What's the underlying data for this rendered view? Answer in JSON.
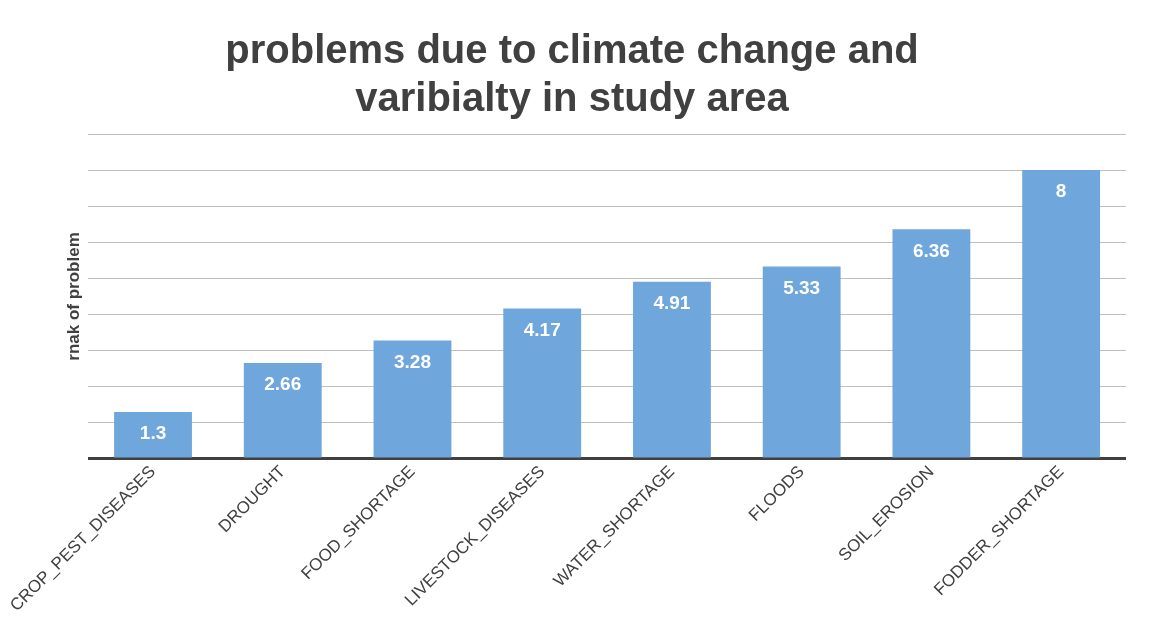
{
  "chart_data": {
    "type": "bar",
    "title": [
      "problems due to climate change and",
      "varibialty in study area"
    ],
    "ylabel": "rnak of problem",
    "categories": [
      "CROP_PEST_DISEASES",
      "DROUGHT",
      "FOOD_SHORTAGE",
      "LIVESTOCK_DISEASES",
      "WATER_SHORTAGE",
      "FLOODS",
      "SOIL_EROSION",
      "FODDER_SHORTAGE"
    ],
    "values": [
      1.3,
      2.66,
      3.28,
      4.17,
      4.91,
      5.33,
      6.36,
      8
    ],
    "color": "#6fa6db",
    "ylim": [
      0,
      9
    ],
    "yticks": [
      {
        "value": 0,
        "label": null
      },
      {
        "value": 1,
        "label": null
      },
      {
        "value": 2,
        "label": null
      },
      {
        "value": 3,
        "label": null
      },
      {
        "value": 4,
        "label": null
      },
      {
        "value": 5,
        "label": null
      },
      {
        "value": 6,
        "label": null
      },
      {
        "value": 7,
        "label": null
      },
      {
        "value": 8,
        "label": null
      },
      {
        "value": 9,
        "label": null
      }
    ],
    "tick_labels": "x",
    "grid": "y",
    "legend": false,
    "data_labels": true
  }
}
